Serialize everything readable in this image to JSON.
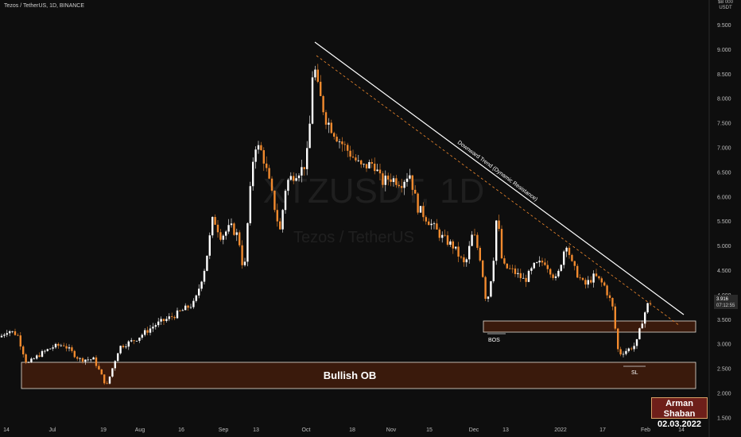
{
  "header": {
    "symbol_line": "Tezos / TetherUS, 1D, BINANCE"
  },
  "price_axis": {
    "currency_top": "$B 000",
    "currency_unit": "USDT"
  },
  "watermark": {
    "ticker": "XTZUSDT, 1D",
    "name": "Tezos / TetherUS"
  },
  "chart_data": {
    "type": "candlestick",
    "title": "Tezos / TetherUS, 1D, BINANCE",
    "xlabel": "",
    "ylabel": "",
    "y_ticks": [
      "9.500",
      "9.000",
      "8.500",
      "8.000",
      "7.500",
      "7.000",
      "6.500",
      "6.000",
      "5.500",
      "5.000",
      "4.500",
      "4.000",
      "3.500",
      "3.000",
      "2.500",
      "2.000",
      "1.500"
    ],
    "ylim": [
      1.4,
      9.9
    ],
    "x_ticks": [
      "14",
      "Jul",
      "19",
      "Aug",
      "16",
      "Sep",
      "13",
      "Oct",
      "18",
      "Nov",
      "15",
      "Dec",
      "13",
      "2022",
      "17",
      "Feb",
      "14"
    ],
    "last_price": "3.916",
    "countdown": "07:12:55",
    "colors": {
      "up": "#ffffff",
      "down": "#f28a2e",
      "background": "#0e0e0e",
      "zone_fill": "#3a1a0c",
      "zone_border": "#e8e0d8"
    },
    "key_prices": [
      {
        "label": "start",
        "value": 3.2
      },
      {
        "label": "july low",
        "value": 2.15
      },
      {
        "label": "sep high",
        "value": 8.0
      },
      {
        "label": "oct high",
        "value": 9.2
      },
      {
        "label": "dec low",
        "value": 3.7
      },
      {
        "label": "jan low",
        "value": 2.6
      },
      {
        "label": "last",
        "value": 3.916
      }
    ],
    "annotations": {
      "trendline_label": "Downward Trend (Dynamic Resistance)",
      "bos": "BOS",
      "sl": "SL",
      "order_block": "Bullish OB",
      "supply_zone": [
        3.25,
        3.5
      ],
      "bullish_ob_zone": [
        2.1,
        2.65
      ]
    }
  },
  "author": {
    "name": "Arman Shaban",
    "date": "02.03.2022"
  }
}
